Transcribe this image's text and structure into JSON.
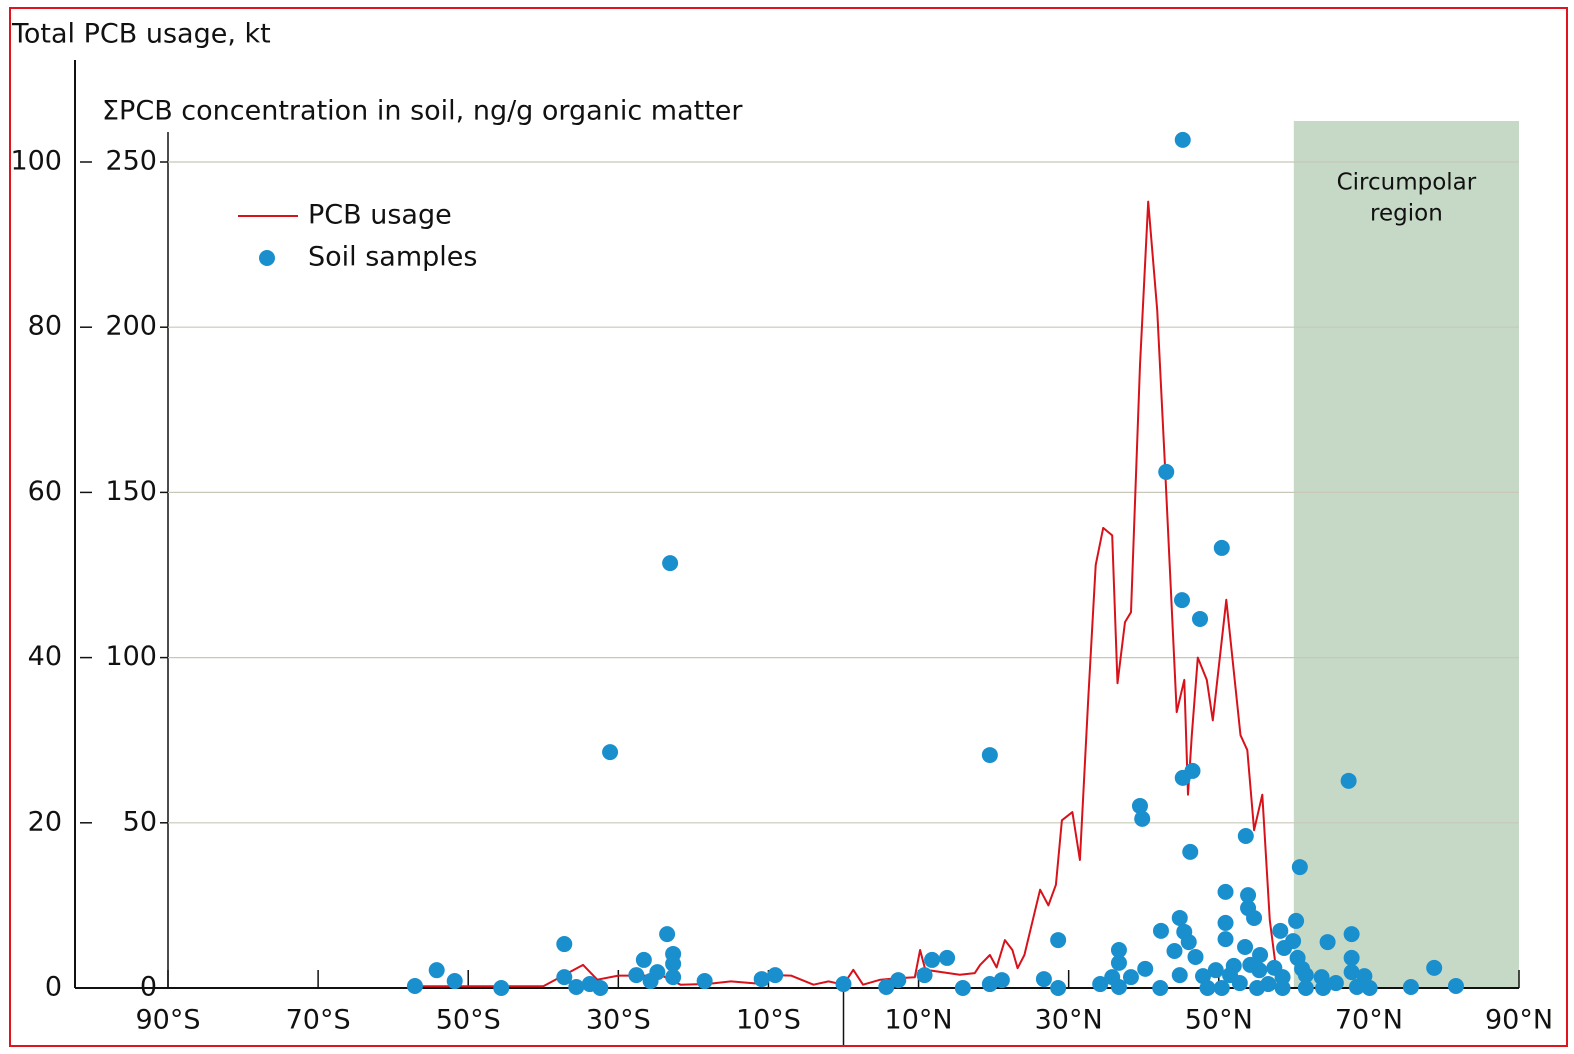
{
  "chart_data": {
    "type": "combo",
    "y2_label": "Total PCB usage, kt",
    "y_label": "ΣPCB concentration in soil, ng/g organic matter",
    "xlim": [
      -90,
      90
    ],
    "xticks": [
      {
        "value": -90,
        "label": "90°S"
      },
      {
        "value": -70,
        "label": "70°S"
      },
      {
        "value": -50,
        "label": "50°S"
      },
      {
        "value": -30,
        "label": "30°S"
      },
      {
        "value": -10,
        "label": "10°S"
      },
      {
        "value": 10,
        "label": "10°N"
      },
      {
        "value": 30,
        "label": "30°N"
      },
      {
        "value": 50,
        "label": "50°N"
      },
      {
        "value": 70,
        "label": "70°N"
      },
      {
        "value": 90,
        "label": "90°N"
      }
    ],
    "ylim": [
      0,
      250
    ],
    "yticks": [
      0,
      50,
      100,
      150,
      200,
      250
    ],
    "y2lim": [
      0,
      100
    ],
    "y2ticks": [
      0,
      20,
      40,
      60,
      80,
      100
    ],
    "grid": true,
    "region": {
      "label": [
        "Circumpolar",
        "region"
      ],
      "from": 60,
      "to": 90,
      "color": "#c6d9c6"
    },
    "series": [
      {
        "name": "PCB usage",
        "type": "line",
        "axis": "y2",
        "color": "#d8121b",
        "x": [
          -57,
          -40,
          -34.7,
          -32.8,
          -30,
          -25,
          -24.4,
          -21.7,
          -18,
          -15,
          -11,
          -10.9,
          -7,
          -4,
          -2,
          0,
          1.3,
          2.6,
          4.9,
          7.5,
          9.5,
          10.2,
          10.9,
          15.5,
          17.5,
          18.2,
          19.5,
          20.4,
          21.5,
          22.5,
          23.2,
          24.1,
          26.2,
          27.3,
          28.3,
          29.1,
          30.5,
          31.5,
          32.6,
          33.6,
          34.6,
          35.8,
          36.5,
          37.5,
          38.3,
          39.5,
          40.6,
          41.8,
          42.8,
          44.4,
          45.4,
          45.9,
          46.4,
          47.2,
          48.4,
          49.2,
          51,
          52.9,
          53.8,
          54.7,
          55.8,
          56.8,
          57.9
        ],
        "values": [
          0.2,
          0.2,
          2.8,
          1,
          1.5,
          1.5,
          1.6,
          0.4,
          0.5,
          0.8,
          0.5,
          1.6,
          1.5,
          0.4,
          0.8,
          0.4,
          2.2,
          0.4,
          1,
          1.2,
          1.3,
          4.6,
          2.2,
          1.6,
          1.8,
          2.8,
          4,
          2.5,
          5.8,
          4.6,
          2.4,
          4,
          11.9,
          10,
          12.5,
          20.3,
          21.3,
          15.5,
          34.9,
          51.2,
          55.7,
          54.8,
          36.9,
          44.3,
          45.5,
          75.4,
          95.2,
          82.1,
          63.9,
          33.4,
          37.3,
          23.4,
          30.6,
          40,
          37.3,
          32.4,
          47,
          30.6,
          28.8,
          19.1,
          23.4,
          8.2,
          0.4
        ]
      },
      {
        "name": "Soil samples",
        "type": "scatter",
        "color": "#1a8fce",
        "x": [
          -57.1,
          -54.2,
          -51.8,
          -45.6,
          -37.2,
          -37.2,
          -35.6,
          -33.8,
          -32.4,
          -31.1,
          -27.6,
          -26.6,
          -25.7,
          -24.8,
          -23.5,
          -23.1,
          -22.7,
          -22.7,
          -22.7,
          -18.5,
          -10.9,
          -9.1,
          0,
          5.7,
          7.3,
          10.8,
          11.8,
          13.8,
          15.9,
          19.5,
          19.5,
          21.1,
          26.7,
          28.6,
          28.6,
          34.2,
          35.8,
          36.7,
          36.7,
          36.7,
          38.3,
          39.5,
          39.8,
          40.2,
          42.2,
          42.3,
          43.0,
          44.1,
          44.8,
          44.8,
          45.1,
          45.2,
          45.2,
          45.4,
          46.0,
          46.2,
          46.5,
          46.9,
          47.5,
          47.9,
          48.5,
          49.6,
          50.4,
          50.4,
          50.9,
          50.9,
          50.9,
          51.5,
          52.0,
          52.8,
          53.5,
          53.6,
          53.9,
          53.9,
          54.2,
          54.7,
          55.1,
          55.4,
          55.5,
          56.6,
          57.4,
          58.2,
          58.5,
          58.5,
          58.7,
          59.9,
          60.3,
          60.5,
          60.8,
          61.1,
          61.6,
          61.6,
          63.7,
          63.9,
          64.5,
          65.6,
          67.3,
          67.7,
          67.7,
          67.7,
          68.4,
          69.4,
          70.1,
          75.6,
          78.7,
          81.6
        ],
        "values": [
          0.6,
          5.4,
          2.1,
          0,
          13.3,
          3.3,
          0.3,
          1.2,
          0,
          71.4,
          3.9,
          8.5,
          2.1,
          4.8,
          16.3,
          128.6,
          10.3,
          7.3,
          3.3,
          2.1,
          2.7,
          3.9,
          1.2,
          0.3,
          2.4,
          3.9,
          8.5,
          9.1,
          0,
          70.5,
          1.2,
          2.4,
          2.7,
          14.5,
          0,
          1.2,
          3.3,
          11.5,
          7.6,
          0.3,
          3.3,
          55.1,
          51.2,
          5.8,
          0,
          17.3,
          156.2,
          11.2,
          3.9,
          21.2,
          117.4,
          256.7,
          63.6,
          17,
          13.9,
          41.2,
          65.7,
          9.4,
          111.7,
          3.6,
          0,
          5.4,
          133.2,
          0,
          29.1,
          19.7,
          14.8,
          3.9,
          6.7,
          1.5,
          12.4,
          46,
          28.1,
          24.2,
          7,
          21.2,
          0,
          5.4,
          10,
          1.2,
          6.1,
          17.3,
          3.3,
          0,
          12.1,
          14.2,
          20.3,
          9.1,
          36.6,
          5.8,
          3.9,
          0,
          3.3,
          0,
          13.9,
          1.5,
          62.7,
          16.3,
          9.1,
          4.8,
          0.3,
          3.6,
          0,
          0.3,
          6.1,
          0.6
        ]
      }
    ]
  }
}
